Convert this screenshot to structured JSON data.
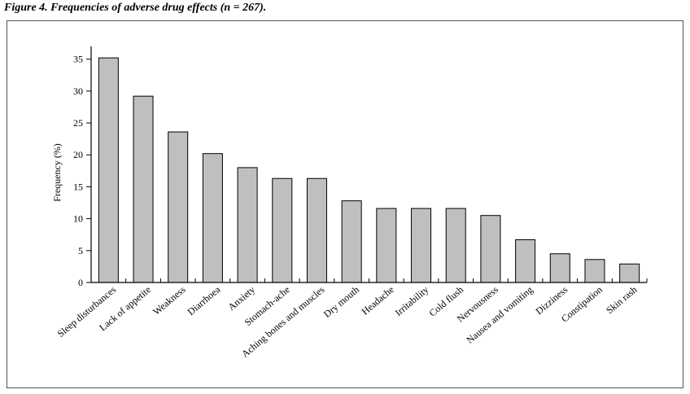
{
  "figure": {
    "title": "Figure 4. Frequencies of adverse drug effects (n = 267)."
  },
  "chart_data": {
    "type": "bar",
    "title": "Figure 4. Frequencies of adverse drug effects (n = 267).",
    "xlabel": "",
    "ylabel": "Frequency (%)",
    "ylim": [
      0,
      37
    ],
    "yticks": [
      0,
      5,
      10,
      15,
      20,
      25,
      30,
      35
    ],
    "grid": false,
    "legend": "none",
    "bar_color": "#bfbfbf",
    "categories": [
      "Sleep disturbances",
      "Lack of appetite",
      "Weakness",
      "Diarrhoea",
      "Anxiety",
      "Stomach-ache",
      "Aching bones and muscles",
      "Dry mouth",
      "Headache",
      "Irritability",
      "Cold flush",
      "Nervousness",
      "Nausea and vomiting",
      "Dizziness",
      "Constipation",
      "Skin rash"
    ],
    "values": [
      35.2,
      29.2,
      23.6,
      20.2,
      18.0,
      16.3,
      16.3,
      12.8,
      11.6,
      11.6,
      11.6,
      10.5,
      6.7,
      4.5,
      3.6,
      2.9
    ]
  }
}
